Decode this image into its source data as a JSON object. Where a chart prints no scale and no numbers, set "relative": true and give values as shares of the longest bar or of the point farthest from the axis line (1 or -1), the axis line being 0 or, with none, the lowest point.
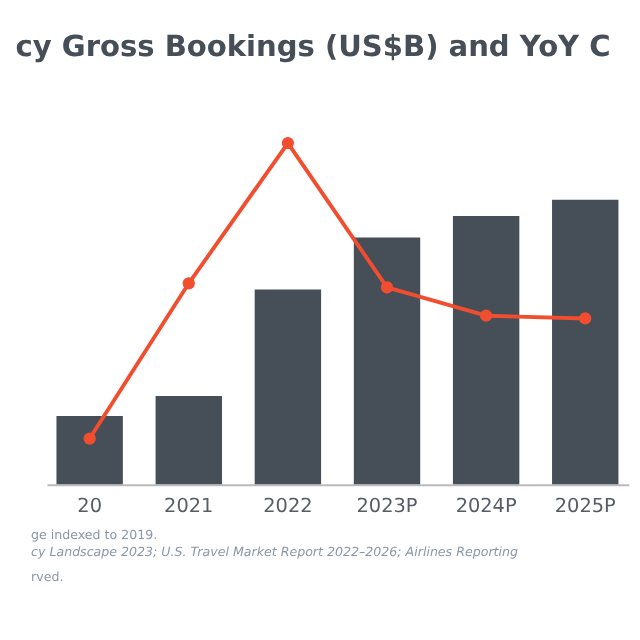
{
  "chart_data": {
    "type": "bar",
    "title": "cy Gross Bookings (US$B) and YoY C",
    "relative": true,
    "categories": [
      "20",
      "2021",
      "2022",
      "2023P",
      "2024P",
      "2025P"
    ],
    "series": [
      {
        "color": "#464e57",
        "values": [
          0.2,
          0.259,
          0.571,
          0.723,
          0.786,
          0.834
        ]
      },
      {
        "type": "line",
        "color": "#f04e2e",
        "marker": "circle",
        "values": [
          0.134,
          0.589,
          1,
          0.577,
          0.494,
          0.486
        ]
      }
    ],
    "annotations": [
      "ge indexed to 2019.",
      "cy Landscape 2023; U.S. Travel Market Report 2022–2026; Airlines Reporting",
      "rved."
    ]
  }
}
